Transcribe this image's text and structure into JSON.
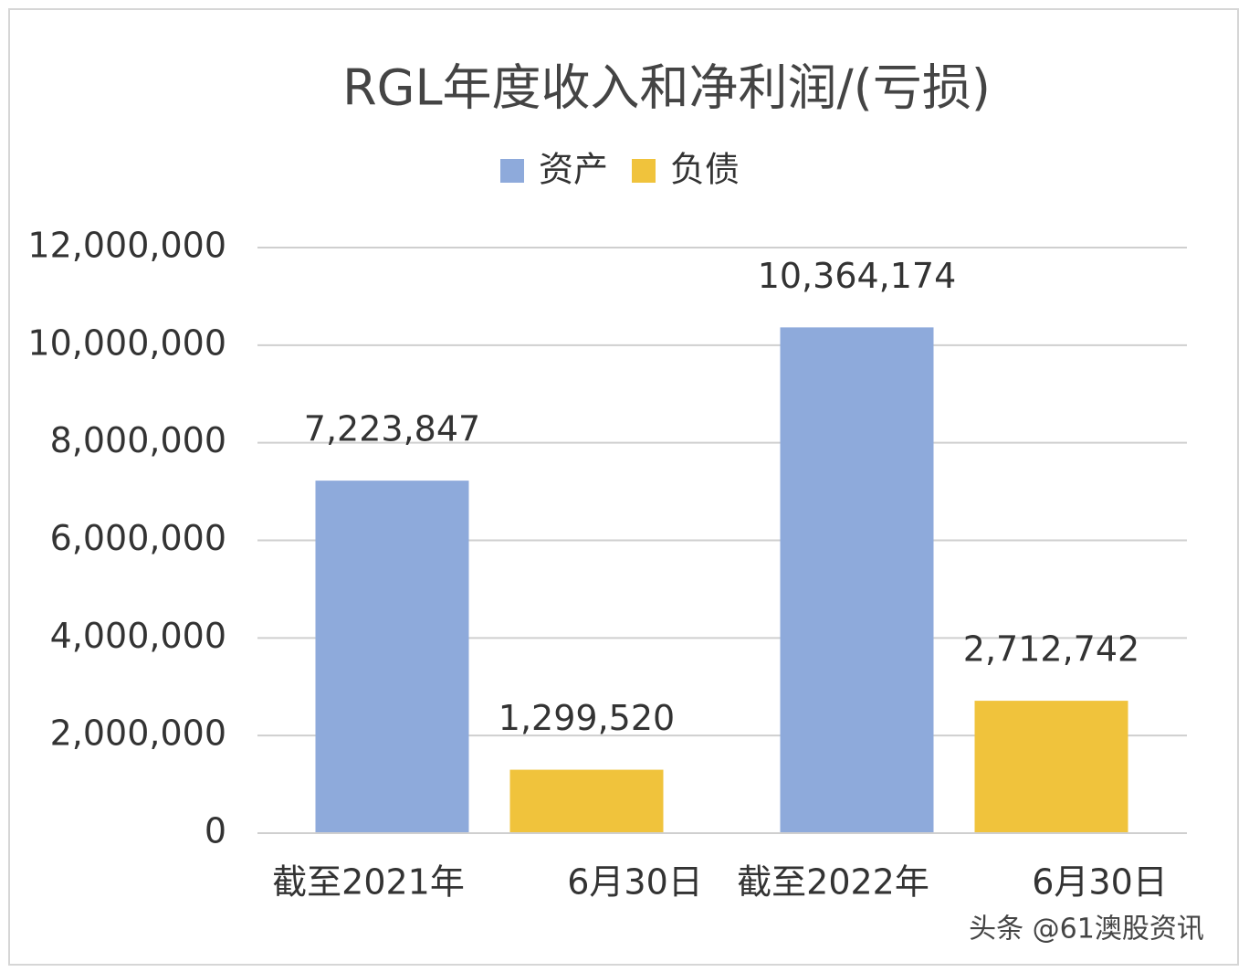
{
  "chart_data": {
    "type": "bar",
    "title": "RGL年度收入和净利润/(亏损)",
    "categories": [
      [
        "截至2021年",
        "6月30日"
      ],
      [
        "截至2022年",
        "6月30日"
      ]
    ],
    "series": [
      {
        "name": "资产",
        "color": "#8eaadb",
        "values": [
          7223847,
          10364174
        ],
        "value_labels": [
          "7,223,847",
          "10,364,174"
        ]
      },
      {
        "name": "负债",
        "color": "#f0c33c",
        "values": [
          1299520,
          2712742
        ],
        "value_labels": [
          "1,299,520",
          "2,712,742"
        ]
      }
    ],
    "ylim": [
      0,
      12000000
    ],
    "yticks": [
      0,
      {
        "value": 2000000,
        "label": "2,000,000"
      },
      {
        "value": 4000000,
        "label": "4,000,000"
      },
      {
        "value": 6000000,
        "label": "6,000,000"
      },
      {
        "value": 8000000,
        "label": "8,000,000"
      },
      {
        "value": 10000000,
        "label": "10,000,000"
      },
      {
        "value": 12000000,
        "label": "12,000,000"
      }
    ],
    "grid": true,
    "legend": "top",
    "watermark": "头条 @61澳股资讯"
  }
}
